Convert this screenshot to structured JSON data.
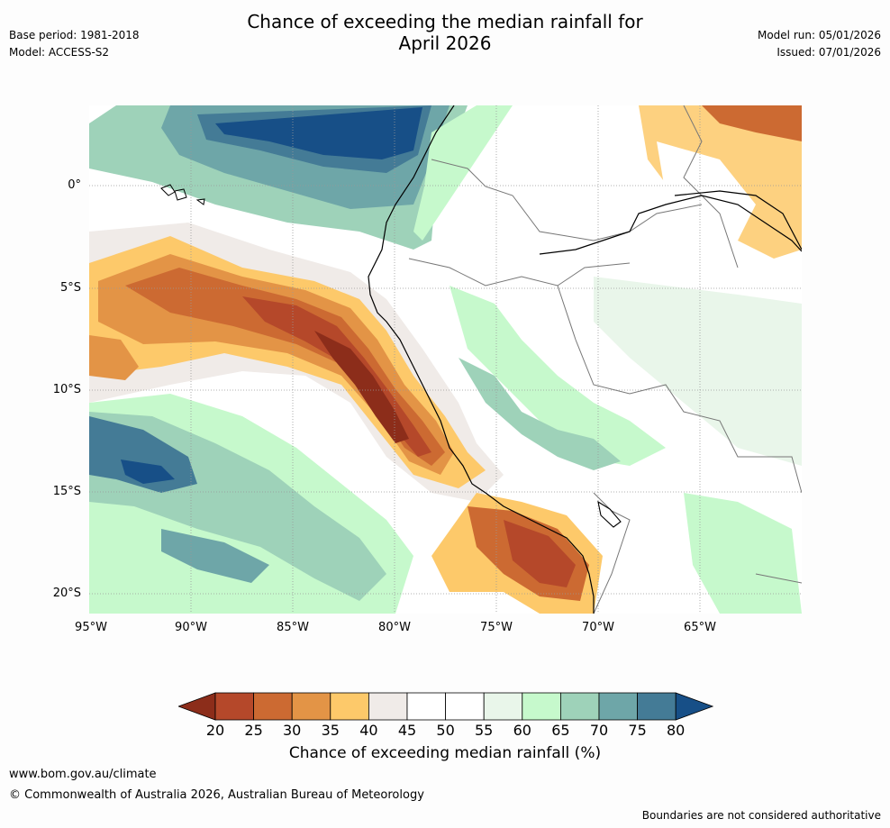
{
  "title_line1": "Chance of exceeding the median rainfall for",
  "title_line2": "April 2026",
  "meta_left": {
    "base_period": "Base period: 1981-2018",
    "model": "Model: ACCESS-S2"
  },
  "meta_right": {
    "model_run": "Model run: 05/01/2026",
    "issued": "Issued: 07/01/2026"
  },
  "axes": {
    "lat_labels": [
      "0°",
      "5°S",
      "10°S",
      "15°S",
      "20°S"
    ],
    "lon_labels": [
      "95°W",
      "90°W",
      "85°W",
      "80°W",
      "75°W",
      "70°W",
      "65°W"
    ]
  },
  "colorbar": {
    "ticks": [
      "20",
      "25",
      "30",
      "35",
      "40",
      "45",
      "50",
      "55",
      "60",
      "65",
      "70",
      "75",
      "80"
    ],
    "colors": [
      "#8c2d1a",
      "#b5482a",
      "#cc6a32",
      "#e39446",
      "#fdc96a",
      "#f0ebe8",
      "#ffffff",
      "#ffffff",
      "#e9f6ea",
      "#c6f9cc",
      "#9ed2b9",
      "#6ea6a8",
      "#447b96",
      "#174f87"
    ],
    "label": "Chance of exceeding median rainfall (%)"
  },
  "footer": {
    "url": "www.bom.gov.au/climate",
    "copyright": "© Commonwealth of Australia 2026, Australian Bureau of Meteorology",
    "disclaimer": "Boundaries are not considered authoritative"
  },
  "map_colors": {
    "dark_blue": "#174f87",
    "blue": "#447b96",
    "teal": "#6ea6a8",
    "sea_green": "#9ed2b9",
    "green": "#c6f9cc",
    "pale_green": "#e9f6ea",
    "beige": "#f0ebe8",
    "yellow": "#fdc96a",
    "light_orange": "#e39446",
    "orange": "#cc6a32",
    "brown": "#b5482a",
    "dark_brown": "#8c2d1a"
  }
}
